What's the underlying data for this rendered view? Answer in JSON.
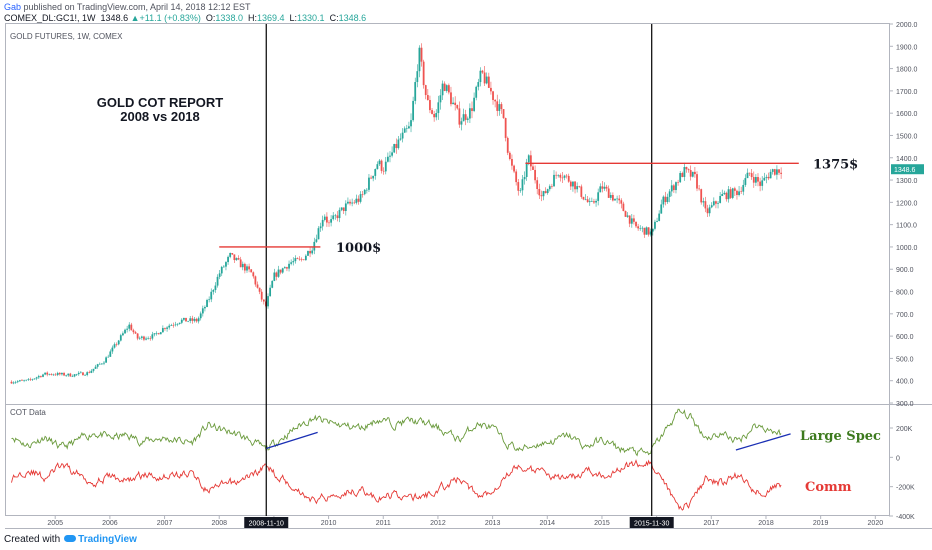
{
  "header": {
    "author": "Gab",
    "published": "published on TradingView.com, April 14, 2018 12:12 EST",
    "symbol": "COMEX_DL:GC1!, 1W",
    "last": "1348.6",
    "change": "+11.1 (+0.83%)",
    "open_label": "O:",
    "open": "1338.0",
    "high_label": "H:",
    "high": "1369.4",
    "low_label": "L:",
    "low": "1330.1",
    "close_label": "C:",
    "close": "1348.6"
  },
  "footer": {
    "created_with": "Created with",
    "brand": "TradingView"
  },
  "chart_data": {
    "type": "line",
    "panes": [
      {
        "name": "price",
        "title": "GOLD FUTURES, 1W, COMEX",
        "style": "candlestick",
        "ylim": [
          300,
          2000
        ],
        "yticks": [
          300,
          400,
          500,
          600,
          700,
          800,
          900,
          1000,
          1100,
          1200,
          1300,
          1400,
          1500,
          1600,
          1700,
          1800,
          1900,
          2000
        ],
        "ytick_labels": [
          "300.0",
          "400.0",
          "500.0",
          "600.0",
          "700.0",
          "800.0",
          "900.0",
          "1000.0",
          "1100.0",
          "1200.0",
          "1300.0",
          "1400.0",
          "1500.0",
          "1600.0",
          "1700.0",
          "1800.0",
          "1900.0",
          "2000.0"
        ],
        "series": [
          {
            "values": [
              [
                2004.2,
                395
              ],
              [
                2004.5,
                400
              ],
              [
                2004.8,
                430
              ],
              [
                2005.0,
                430
              ],
              [
                2005.3,
                425
              ],
              [
                2005.6,
                435
              ],
              [
                2005.9,
                490
              ],
              [
                2006.1,
                560
              ],
              [
                2006.35,
                650
              ],
              [
                2006.5,
                590
              ],
              [
                2006.8,
                600
              ],
              [
                2007.0,
                640
              ],
              [
                2007.3,
                670
              ],
              [
                2007.6,
                670
              ],
              [
                2007.8,
                760
              ],
              [
                2008.0,
                880
              ],
              [
                2008.2,
                960
              ],
              [
                2008.45,
                910
              ],
              [
                2008.6,
                880
              ],
              [
                2008.75,
                780
              ],
              [
                2008.85,
                730
              ],
              [
                2009.0,
                870
              ],
              [
                2009.3,
                930
              ],
              [
                2009.5,
                940
              ],
              [
                2009.7,
                1000
              ],
              [
                2009.92,
                1150
              ],
              [
                2010.0,
                1100
              ],
              [
                2010.3,
                1180
              ],
              [
                2010.6,
                1220
              ],
              [
                2010.9,
                1380
              ],
              [
                2011.0,
                1350
              ],
              [
                2011.3,
                1480
              ],
              [
                2011.5,
                1540
              ],
              [
                2011.65,
                1880
              ],
              [
                2011.8,
                1650
              ],
              [
                2011.95,
                1580
              ],
              [
                2012.1,
                1740
              ],
              [
                2012.4,
                1570
              ],
              [
                2012.6,
                1610
              ],
              [
                2012.8,
                1780
              ],
              [
                2013.0,
                1680
              ],
              [
                2013.2,
                1580
              ],
              [
                2013.3,
                1400
              ],
              [
                2013.5,
                1230
              ],
              [
                2013.65,
                1400
              ],
              [
                2013.9,
                1220
              ],
              [
                2014.2,
                1340
              ],
              [
                2014.5,
                1280
              ],
              [
                2014.8,
                1180
              ],
              [
                2015.0,
                1270
              ],
              [
                2015.3,
                1200
              ],
              [
                2015.6,
                1090
              ],
              [
                2015.92,
                1060
              ],
              [
                2016.1,
                1200
              ],
              [
                2016.5,
                1340
              ],
              [
                2016.7,
                1310
              ],
              [
                2016.9,
                1150
              ],
              [
                2017.2,
                1230
              ],
              [
                2017.5,
                1250
              ],
              [
                2017.7,
                1330
              ],
              [
                2017.9,
                1280
              ],
              [
                2018.1,
                1340
              ],
              [
                2018.28,
                1348.6
              ]
            ]
          }
        ],
        "annotations": {
          "title_line1": "GOLD COT REPORT",
          "title_line2": "2008 vs 2018",
          "level_1000_label": "1000$",
          "level_1000_value": 1000,
          "level_1375_label": "1375$",
          "level_1375_value": 1375,
          "last_price_label": "1348.6"
        }
      },
      {
        "name": "cot",
        "title": "COT Data",
        "ylim": [
          -400000,
          350000
        ],
        "yticks": [
          200000,
          0,
          -200000,
          -400000
        ],
        "ytick_labels": [
          "200K",
          "0",
          "-200K",
          "-400K"
        ],
        "series": [
          {
            "name": "Large Spec",
            "values": [
              [
                2004.2,
                150
              ],
              [
                2004.5,
                80
              ],
              [
                2004.8,
                140
              ],
              [
                2005.1,
                60
              ],
              [
                2005.4,
                110
              ],
              [
                2005.7,
                170
              ],
              [
                2006.0,
                130
              ],
              [
                2006.3,
                150
              ],
              [
                2006.6,
                110
              ],
              [
                2006.9,
                130
              ],
              [
                2007.2,
                120
              ],
              [
                2007.5,
                100
              ],
              [
                2007.8,
                220
              ],
              [
                2008.0,
                190
              ],
              [
                2008.3,
                160
              ],
              [
                2008.6,
                110
              ],
              [
                2008.85,
                50
              ],
              [
                2009.1,
                120
              ],
              [
                2009.4,
                200
              ],
              [
                2009.7,
                270
              ],
              [
                2009.95,
                240
              ],
              [
                2010.2,
                220
              ],
              [
                2010.6,
                200
              ],
              [
                2010.9,
                260
              ],
              [
                2011.2,
                230
              ],
              [
                2011.5,
                250
              ],
              [
                2011.8,
                230
              ],
              [
                2012.1,
                180
              ],
              [
                2012.4,
                120
              ],
              [
                2012.7,
                230
              ],
              [
                2013.0,
                200
              ],
              [
                2013.2,
                110
              ],
              [
                2013.5,
                50
              ],
              [
                2013.8,
                90
              ],
              [
                2014.1,
                110
              ],
              [
                2014.4,
                150
              ],
              [
                2014.7,
                70
              ],
              [
                2015.0,
                120
              ],
              [
                2015.3,
                60
              ],
              [
                2015.6,
                40
              ],
              [
                2015.85,
                20
              ],
              [
                2016.1,
                150
              ],
              [
                2016.4,
                310
              ],
              [
                2016.6,
                280
              ],
              [
                2016.9,
                140
              ],
              [
                2017.2,
                160
              ],
              [
                2017.5,
                110
              ],
              [
                2017.8,
                220
              ],
              [
                2018.0,
                200
              ],
              [
                2018.28,
                160
              ]
            ]
          },
          {
            "name": "Comm",
            "values": [
              [
                2004.2,
                -150
              ],
              [
                2004.5,
                -80
              ],
              [
                2004.8,
                -140
              ],
              [
                2005.1,
                -60
              ],
              [
                2005.4,
                -110
              ],
              [
                2005.7,
                -170
              ],
              [
                2006.0,
                -130
              ],
              [
                2006.3,
                -160
              ],
              [
                2006.6,
                -120
              ],
              [
                2006.9,
                -130
              ],
              [
                2007.2,
                -120
              ],
              [
                2007.5,
                -110
              ],
              [
                2007.8,
                -230
              ],
              [
                2008.0,
                -200
              ],
              [
                2008.3,
                -170
              ],
              [
                2008.6,
                -120
              ],
              [
                2008.85,
                -60
              ],
              [
                2009.1,
                -130
              ],
              [
                2009.4,
                -210
              ],
              [
                2009.7,
                -290
              ],
              [
                2009.95,
                -270
              ],
              [
                2010.2,
                -240
              ],
              [
                2010.6,
                -220
              ],
              [
                2010.9,
                -290
              ],
              [
                2011.2,
                -250
              ],
              [
                2011.5,
                -280
              ],
              [
                2011.8,
                -260
              ],
              [
                2012.1,
                -200
              ],
              [
                2012.4,
                -140
              ],
              [
                2012.7,
                -260
              ],
              [
                2013.0,
                -230
              ],
              [
                2013.2,
                -120
              ],
              [
                2013.5,
                -60
              ],
              [
                2013.8,
                -100
              ],
              [
                2014.1,
                -120
              ],
              [
                2014.4,
                -160
              ],
              [
                2014.7,
                -80
              ],
              [
                2015.0,
                -130
              ],
              [
                2015.3,
                -70
              ],
              [
                2015.6,
                -50
              ],
              [
                2015.85,
                -30
              ],
              [
                2016.1,
                -170
              ],
              [
                2016.4,
                -340
              ],
              [
                2016.6,
                -310
              ],
              [
                2016.9,
                -150
              ],
              [
                2017.2,
                -170
              ],
              [
                2017.5,
                -120
              ],
              [
                2017.8,
                -240
              ],
              [
                2018.0,
                -220
              ],
              [
                2018.28,
                -180
              ]
            ]
          }
        ],
        "annotations": {
          "large_spec_label": "Large Spec",
          "comm_label": "Comm"
        }
      }
    ],
    "x": {
      "xlim": [
        2004.1,
        2020.25
      ],
      "ticks": [
        2005,
        2006,
        2007,
        2008,
        2009,
        2010,
        2011,
        2012,
        2013,
        2014,
        2015,
        2016,
        2017,
        2018,
        2019,
        2020
      ],
      "tick_labels": [
        "2005",
        "2006",
        "2007",
        "2008",
        "",
        "2010",
        "2011",
        "2012",
        "2013",
        "2014",
        "2015",
        "",
        "2017",
        "2018",
        "2019",
        "2020"
      ]
    },
    "vertical_markers": [
      {
        "x": 2008.86,
        "label": "2008-11-10"
      },
      {
        "x": 2015.91,
        "label": "2015-11-30"
      }
    ],
    "grid": false,
    "colors": {
      "up": "#26a69a",
      "down": "#ef5350",
      "large_spec": "#6a9a3c",
      "comm": "#e53935",
      "resistance": "#e53935",
      "trend": "#1a2fb4",
      "marker": "#000000",
      "label_green": "#3d7a1e",
      "label_red": "#e53935"
    }
  }
}
